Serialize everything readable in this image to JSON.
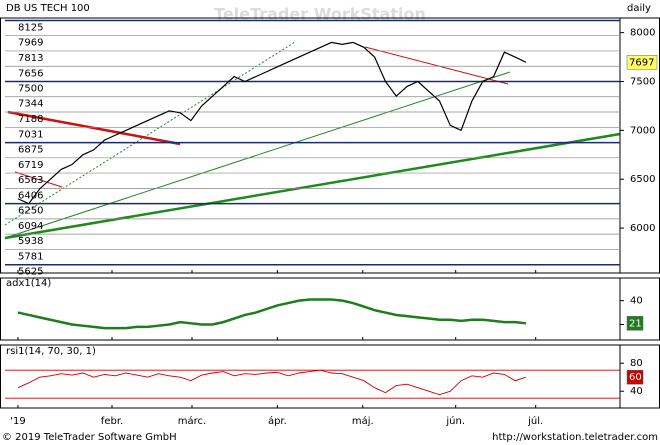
{
  "footer": {
    "copyright": "© 2019 TeleTrader Software GmbH",
    "url": "http://workstation.teletrader.com"
  },
  "chart_data": [
    {
      "type": "line",
      "title": "DB US TECH 100",
      "period": "daily",
      "watermark": "TeleTrader WorkStation",
      "color": "#000000",
      "values": [
        6300,
        6250,
        6400,
        6500,
        6600,
        6650,
        6750,
        6800,
        6900,
        6950,
        7000,
        7050,
        7100,
        7150,
        7200,
        7180,
        7100,
        7250,
        7350,
        7450,
        7550,
        7500,
        7550,
        7600,
        7650,
        7700,
        7750,
        7800,
        7850,
        7900,
        7880,
        7900,
        7850,
        7750,
        7500,
        7350,
        7450,
        7500,
        7400,
        7300,
        7050,
        7000,
        7300,
        7500,
        7550,
        7800,
        7750,
        7697
      ],
      "xlim": [
        -1.2,
        55.7
      ],
      "ylim": [
        5540,
        8150
      ],
      "yticks": [
        6000,
        6500,
        7000,
        7500,
        8000
      ],
      "levels": [
        8125,
        7969,
        7813,
        7656,
        7500,
        7344,
        7188,
        7031,
        6875,
        6719,
        6563,
        6406,
        6250,
        6094,
        5938,
        5781,
        5625
      ]
    },
    {
      "type": "line",
      "title": "adx1(14)",
      "color": "#1e7d1e",
      "values": [
        30,
        28,
        26,
        24,
        22,
        20,
        19,
        18,
        17,
        17,
        17,
        18,
        18,
        19,
        20,
        22,
        21,
        20,
        20,
        22,
        25,
        28,
        30,
        33,
        36,
        38,
        40,
        41,
        41,
        41,
        40,
        38,
        35,
        32,
        30,
        28,
        27,
        26,
        25,
        24,
        24,
        23,
        24,
        24,
        23,
        22,
        22,
        21
      ],
      "xlim": [
        -1.2,
        55.7
      ],
      "ylim": [
        7,
        59
      ],
      "yticks": [
        20,
        40
      ]
    },
    {
      "type": "line",
      "title": "rsi1(14, 70, 30, 1)",
      "color": "#cc0000",
      "values": [
        45,
        52,
        60,
        62,
        65,
        63,
        66,
        60,
        64,
        62,
        66,
        63,
        60,
        65,
        62,
        60,
        55,
        63,
        66,
        68,
        62,
        65,
        64,
        66,
        67,
        62,
        66,
        68,
        70,
        66,
        65,
        60,
        55,
        45,
        38,
        48,
        50,
        45,
        40,
        35,
        40,
        55,
        62,
        60,
        66,
        64,
        55,
        60
      ],
      "xlim": [
        -1.2,
        55.7
      ],
      "ylim": [
        16,
        106
      ],
      "yticks": [
        40,
        80
      ],
      "levels": [
        30,
        70
      ],
      "xticks": [
        {
          "value": 0,
          "label": "'19"
        },
        {
          "value": 8.7,
          "label": "febr."
        },
        {
          "value": 16.1,
          "label": "márc."
        },
        {
          "value": 24,
          "label": "ápr."
        },
        {
          "value": 31.9,
          "label": "máj."
        },
        {
          "value": 40.5,
          "label": "jún."
        },
        {
          "value": 47.9,
          "label": "júl."
        }
      ]
    }
  ]
}
